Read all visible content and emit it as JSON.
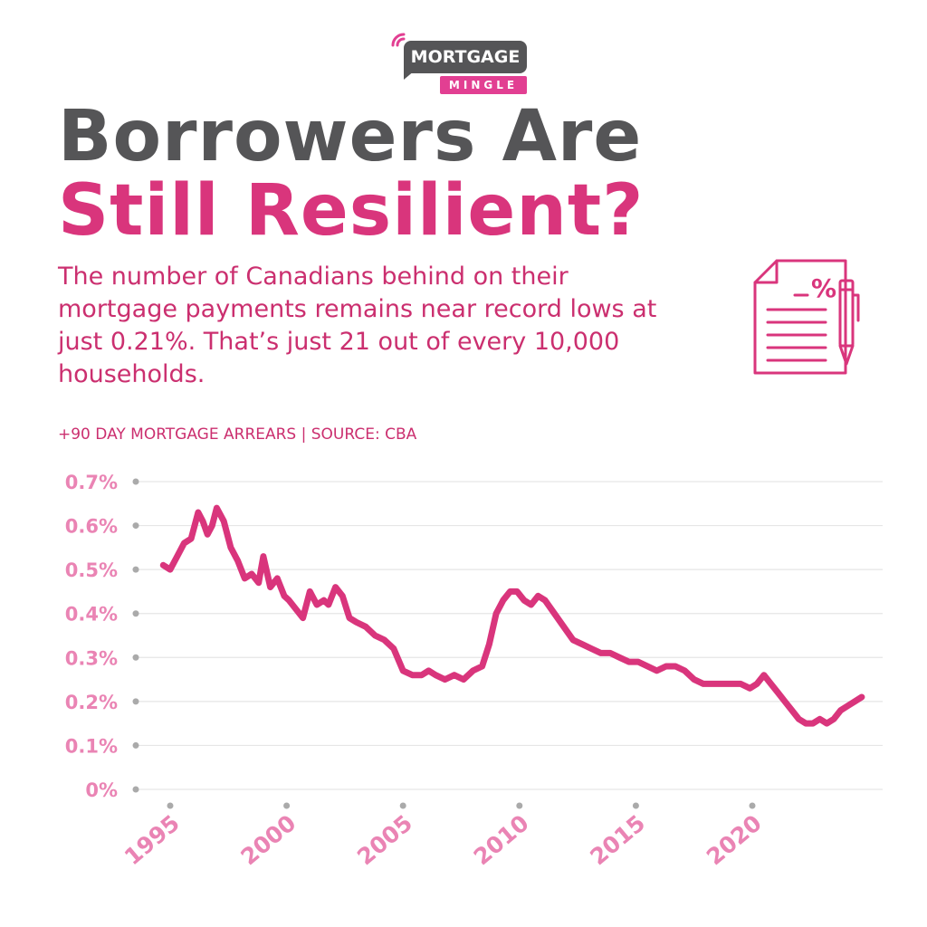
{
  "brand": {
    "logo_top": "MORTGAGE",
    "logo_sub": "MINGLE",
    "primary_color": "#d9357c",
    "dark_color": "#555557"
  },
  "header": {
    "title_line1": "Borrowers Are",
    "title_line2": "Still Resilient?",
    "description": "The number of Canadians behind on their mortgage payments remains near record lows at just 0.21%. That’s just 21 out of every 10,000 households.",
    "source": "+90 DAY MORTGAGE ARREARS | SOURCE: CBA",
    "icon": "document-percent-pencil-icon"
  },
  "chart_data": {
    "type": "line",
    "title": "",
    "xlabel": "",
    "ylabel": "",
    "ylim": [
      0,
      0.7
    ],
    "xlim": [
      1994.6,
      2025.0
    ],
    "grid": "horizontal",
    "legend": "none",
    "line_color": "#d9357c",
    "yticks": [
      "0%",
      "0.1%",
      "0.2%",
      "0.3%",
      "0.4%",
      "0.5%",
      "0.6%",
      "0.7%"
    ],
    "ytick_values": [
      0,
      0.1,
      0.2,
      0.3,
      0.4,
      0.5,
      0.6,
      0.7
    ],
    "xticks": [
      "1995",
      "2000",
      "2005",
      "2010",
      "2015",
      "2020"
    ],
    "xtick_values": [
      1995,
      2000,
      2005,
      2010,
      2015,
      2020
    ],
    "series": [
      {
        "x": [
          1994.7,
          1995.0,
          1995.3,
          1995.6,
          1995.9,
          1996.2,
          1996.4,
          1996.6,
          1996.8,
          1997.0,
          1997.3,
          1997.6,
          1997.9,
          1998.2,
          1998.5,
          1998.8,
          1999.0,
          1999.3,
          1999.6,
          1999.9,
          2000.1,
          2000.4,
          2000.7,
          2001.0,
          2001.3,
          2001.6,
          2001.8,
          2002.1,
          2002.4,
          2002.7,
          2003.0,
          2003.4,
          2003.8,
          2004.2,
          2004.6,
          2005.0,
          2005.4,
          2005.8,
          2006.1,
          2006.4,
          2006.8,
          2007.2,
          2007.6,
          2008.0,
          2008.4,
          2008.7,
          2009.0,
          2009.3,
          2009.6,
          2009.9,
          2010.2,
          2010.5,
          2010.8,
          2011.1,
          2011.5,
          2011.9,
          2012.3,
          2012.7,
          2013.1,
          2013.5,
          2013.9,
          2014.3,
          2014.7,
          2015.1,
          2015.5,
          2015.9,
          2016.3,
          2016.7,
          2017.1,
          2017.5,
          2017.9,
          2018.3,
          2018.7,
          2019.1,
          2019.5,
          2019.9,
          2020.2,
          2020.5,
          2020.8,
          2021.1,
          2021.4,
          2021.7,
          2022.0,
          2022.3,
          2022.6,
          2022.9,
          2023.2,
          2023.5,
          2023.8,
          2024.1,
          2024.4,
          2024.7
        ],
        "values": [
          0.51,
          0.5,
          0.53,
          0.56,
          0.57,
          0.63,
          0.61,
          0.58,
          0.6,
          0.64,
          0.61,
          0.55,
          0.52,
          0.48,
          0.49,
          0.47,
          0.53,
          0.46,
          0.48,
          0.44,
          0.43,
          0.41,
          0.39,
          0.45,
          0.42,
          0.43,
          0.42,
          0.46,
          0.44,
          0.39,
          0.38,
          0.37,
          0.35,
          0.34,
          0.32,
          0.27,
          0.26,
          0.26,
          0.27,
          0.26,
          0.25,
          0.26,
          0.25,
          0.27,
          0.28,
          0.33,
          0.4,
          0.43,
          0.45,
          0.45,
          0.43,
          0.42,
          0.44,
          0.43,
          0.4,
          0.37,
          0.34,
          0.33,
          0.32,
          0.31,
          0.31,
          0.3,
          0.29,
          0.29,
          0.28,
          0.27,
          0.28,
          0.28,
          0.27,
          0.25,
          0.24,
          0.24,
          0.24,
          0.24,
          0.24,
          0.23,
          0.24,
          0.26,
          0.24,
          0.22,
          0.2,
          0.18,
          0.16,
          0.15,
          0.15,
          0.16,
          0.15,
          0.16,
          0.18,
          0.19,
          0.2,
          0.21
        ]
      }
    ]
  }
}
